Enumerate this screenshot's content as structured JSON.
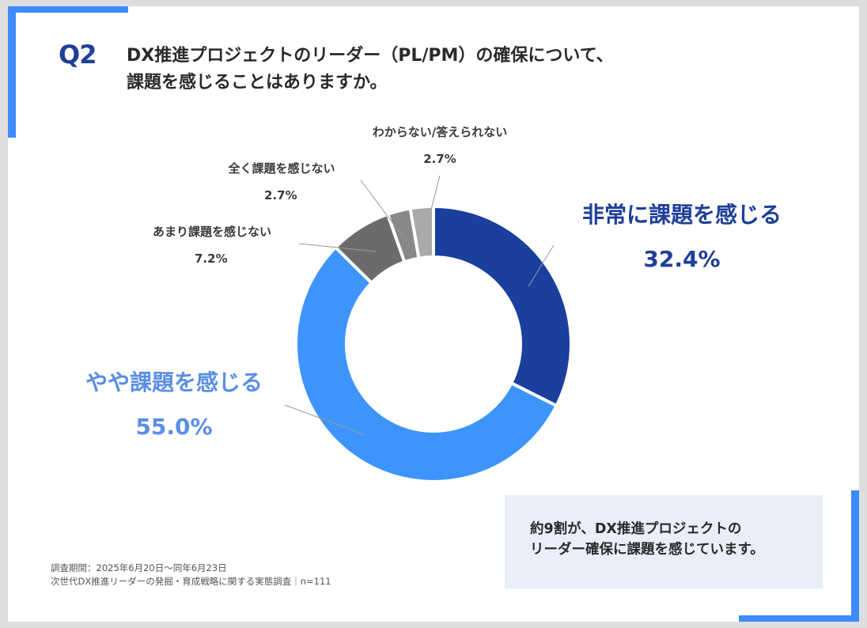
{
  "question": {
    "number": "Q2",
    "title_line1": "DX推進プロジェクトのリーダー（PL/PM）の確保について、",
    "title_line2": "課題を感じることはありますか。"
  },
  "chart_data": {
    "type": "pie",
    "variant": "donut",
    "categories": [
      "非常に課題を感じる",
      "やや課題を感じる",
      "あまり課題を感じない",
      "全く課題を感じない",
      "わからない/答えられない"
    ],
    "values": [
      32.4,
      55.0,
      7.2,
      2.7,
      2.7
    ],
    "value_labels": [
      "32.4%",
      "55.0%",
      "7.2%",
      "2.7%",
      "2.7%"
    ],
    "colors": [
      "#1a3f9c",
      "#3d95fb",
      "#6b6b6b",
      "#888888",
      "#a9a9a9"
    ],
    "start_angle_deg": 0,
    "direction": "clockwise"
  },
  "footnote": {
    "line1": "調査期間：2025年6月20日〜同年6月23日",
    "line2": "次世代DX推進リーダーの発掘・育成戦略に関する実態調査｜n=111"
  },
  "callout": {
    "line1": "約9割が、DX推進プロジェクトの",
    "line2": "リーダー確保に課題を感じています。"
  }
}
